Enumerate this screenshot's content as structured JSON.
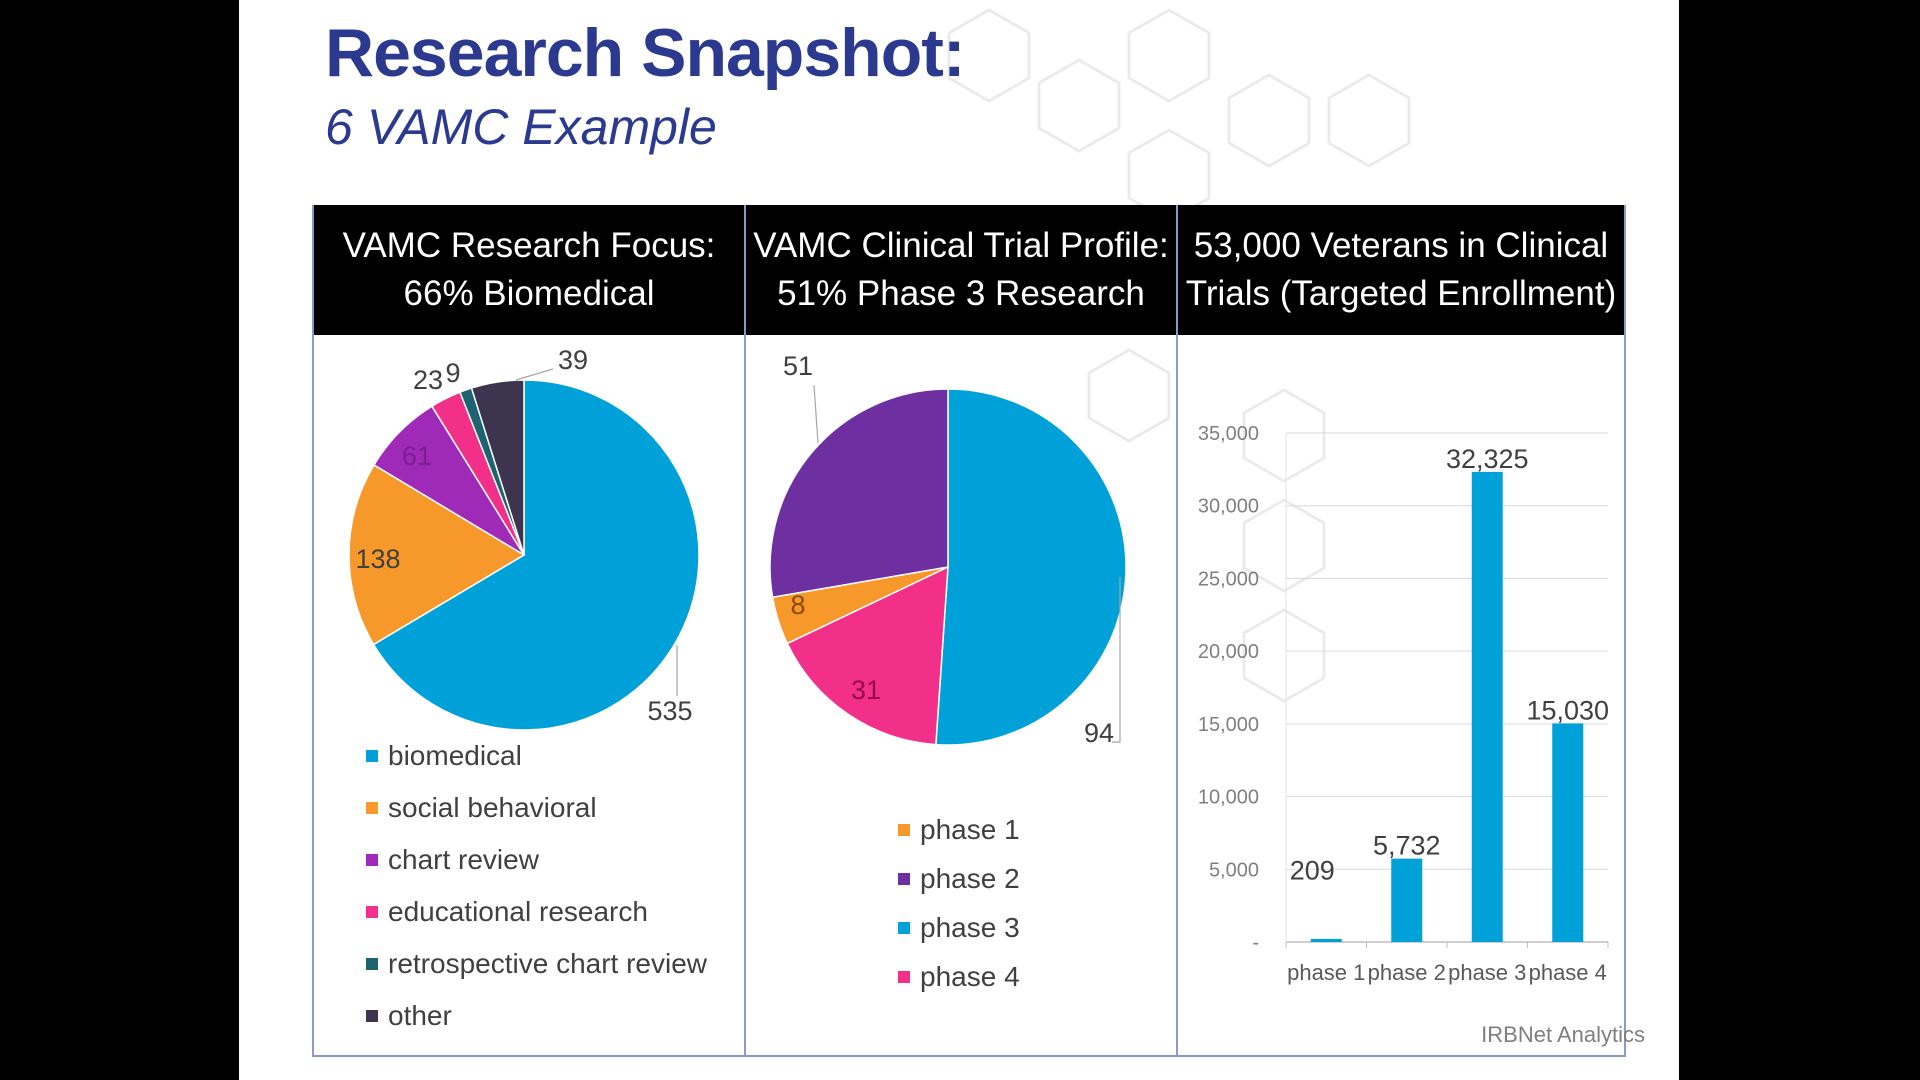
{
  "slide": {
    "title": "Research Snapshot:",
    "subtitle": "6 VAMC Example",
    "credit": "IRBNet Analytics"
  },
  "colors": {
    "title": "#2b3a8f",
    "header_bg": "#000000",
    "header_text": "#ffffff",
    "panel_border": "#8a9bc4",
    "label_text": "#404040"
  },
  "chart_data": [
    {
      "type": "pie",
      "title_lines": [
        "VAMC Research Focus:",
        "66% Biomedical"
      ],
      "slices": [
        {
          "label": "biomedical",
          "value": 535,
          "value_label": "535",
          "color": "#00a0d8"
        },
        {
          "label": "social behavioral",
          "value": 138,
          "value_label": "138",
          "color": "#f7982a"
        },
        {
          "label": "chart review",
          "value": 61,
          "value_label": "61",
          "color": "#a02ab8"
        },
        {
          "label": "educational research",
          "value": 23,
          "value_label": "23",
          "color": "#f2308a"
        },
        {
          "label": "retrospective chart review",
          "value": 9,
          "value_label": "9",
          "color": "#1d6370"
        },
        {
          "label": "other",
          "value": 39,
          "value_label": "39",
          "color": "#3d3450"
        }
      ],
      "legend_position": "bottom"
    },
    {
      "type": "pie",
      "title_lines": [
        "VAMC Clinical Trial Profile:",
        "51% Phase 3 Research"
      ],
      "slices": [
        {
          "label": "phase 1",
          "value": 8,
          "value_label": "8",
          "color": "#f7982a"
        },
        {
          "label": "phase 2",
          "value": 51,
          "value_label": "51",
          "color": "#6e2fa0"
        },
        {
          "label": "phase 3",
          "value": 94,
          "value_label": "94",
          "color": "#00a0d8"
        },
        {
          "label": "phase 4",
          "value": 31,
          "value_label": "31",
          "color": "#f2308a"
        }
      ],
      "draw_order": [
        "phase 3",
        "phase 4",
        "phase 1",
        "phase 2"
      ],
      "legend_position": "bottom"
    },
    {
      "type": "bar",
      "title_lines": [
        "53,000 Veterans in Clinical",
        "Trials (Targeted Enrollment)"
      ],
      "categories": [
        "phase 1",
        "phase 2",
        "phase 3",
        "phase 4"
      ],
      "values": [
        209,
        5732,
        32325,
        15030
      ],
      "value_labels": [
        "209",
        "5,732",
        "32,325",
        "15,030"
      ],
      "color": "#00a0d8",
      "ylim": [
        0,
        35000
      ],
      "yticks": [
        0,
        5000,
        10000,
        15000,
        20000,
        25000,
        30000,
        35000
      ],
      "ytick_labels": [
        "-",
        "5,000",
        "10,000",
        "15,000",
        "20,000",
        "25,000",
        "30,000",
        "35,000"
      ],
      "grid": true,
      "xlabel": "",
      "ylabel": ""
    }
  ]
}
